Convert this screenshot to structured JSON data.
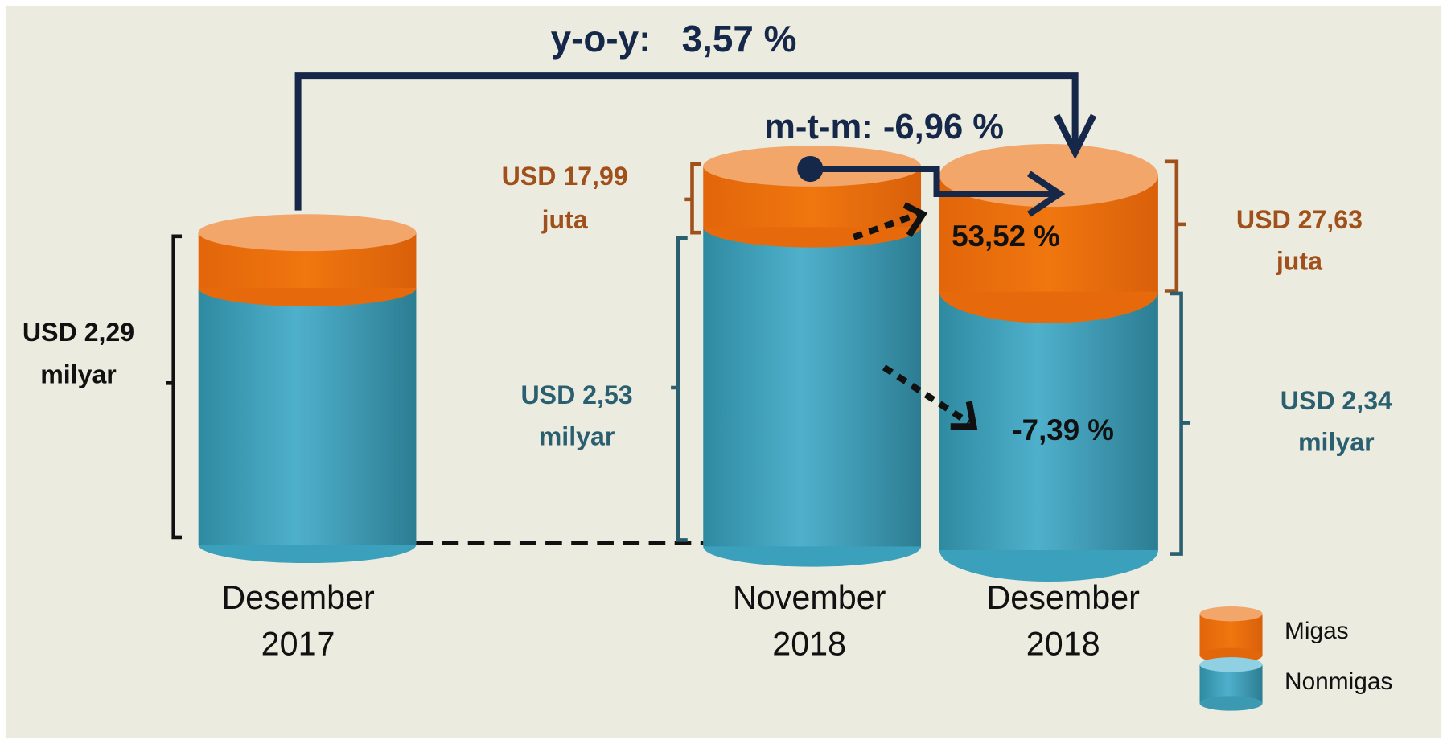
{
  "header": {
    "yoy": "y-o-y:   3,57 %",
    "mtm": "m-t-m: -6,96 %"
  },
  "columns": [
    {
      "label": [
        "Desember",
        "2017"
      ],
      "total": [
        "USD 2,29",
        "milyar"
      ]
    },
    {
      "label": [
        "November",
        "2018"
      ],
      "migas": [
        "USD 17,99",
        "juta"
      ],
      "nonmigas": [
        "USD 2,53",
        "milyar"
      ]
    },
    {
      "label": [
        "Desember",
        "2018"
      ],
      "migas": [
        "USD 27,63",
        "juta"
      ],
      "nonmigas": [
        "USD 2,34",
        "milyar"
      ],
      "migas_change": "53,52 %",
      "nonmigas_change": "-7,39 %"
    }
  ],
  "legend": [
    "Migas",
    "Nonmigas"
  ]
}
